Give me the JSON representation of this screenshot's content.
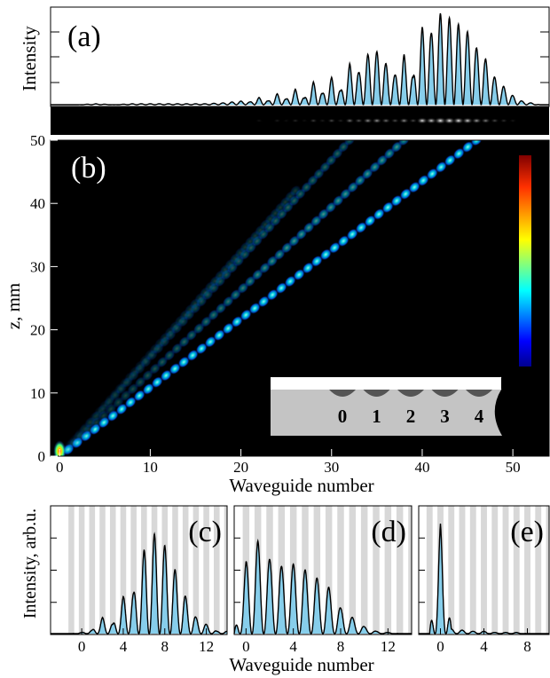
{
  "chart_data": [
    {
      "id": "a",
      "type": "area",
      "label": "(a)",
      "ylabel": "Intensity",
      "xlim": [
        -1,
        54
      ],
      "x": [
        0,
        2,
        4,
        6,
        8,
        10,
        12,
        14,
        16,
        18,
        20,
        21,
        22,
        23,
        24,
        25,
        26,
        27,
        28,
        29,
        30,
        31,
        32,
        33,
        34,
        35,
        36,
        37,
        38,
        39,
        40,
        41,
        42,
        43,
        44,
        45,
        46,
        47,
        48,
        49,
        50,
        51,
        52,
        53
      ],
      "values": [
        0.0,
        0.0,
        0.01,
        0.0,
        0.01,
        0.01,
        0.01,
        0.01,
        0.01,
        0.02,
        0.04,
        0.03,
        0.08,
        0.04,
        0.12,
        0.06,
        0.17,
        0.07,
        0.25,
        0.12,
        0.3,
        0.15,
        0.45,
        0.35,
        0.55,
        0.58,
        0.45,
        0.32,
        0.55,
        0.3,
        0.85,
        0.78,
        1.0,
        0.95,
        0.88,
        0.8,
        0.62,
        0.5,
        0.3,
        0.2,
        0.1,
        0.04,
        0.02,
        0.0
      ]
    },
    {
      "id": "b",
      "type": "heatmap",
      "label": "(b)",
      "xlabel": "Waveguide number",
      "ylabel": "z, mm",
      "xlim": [
        -1,
        54
      ],
      "ylim": [
        0,
        50
      ],
      "xticks": [
        0,
        10,
        20,
        30,
        40,
        50
      ],
      "yticks": [
        0,
        10,
        20,
        30,
        40,
        50
      ],
      "beams": [
        {
          "x0": 0,
          "x1": 46,
          "z0": 0,
          "z1": 50,
          "strength": 1.0
        },
        {
          "x0": 0,
          "x1": 38,
          "z0": 0,
          "z1": 50,
          "strength": 0.55
        },
        {
          "x0": 0,
          "x1": 32,
          "z0": 0,
          "z1": 50,
          "strength": 0.35
        },
        {
          "x0": 0,
          "x1": 26,
          "z0": 0,
          "z1": 42,
          "strength": 0.2
        }
      ],
      "inset_labels": [
        "0",
        "1",
        "2",
        "3",
        "4"
      ]
    },
    {
      "id": "c",
      "type": "area",
      "label": "(c)",
      "ylabel": "Intensity, arb.u.",
      "xlim": [
        -3,
        14
      ],
      "xticks": [
        0,
        4,
        8,
        12
      ],
      "x": [
        -2,
        -1,
        0,
        1,
        2,
        3,
        4,
        5,
        6,
        7,
        8,
        9,
        10,
        11,
        12,
        13
      ],
      "values": [
        0.0,
        0.0,
        0.01,
        0.03,
        0.14,
        0.08,
        0.32,
        0.35,
        0.72,
        0.86,
        0.76,
        0.55,
        0.32,
        0.14,
        0.08,
        0.02
      ]
    },
    {
      "id": "d",
      "type": "area",
      "label": "(d)",
      "xlim": [
        -1,
        14
      ],
      "xticks": [
        0,
        4,
        8,
        12
      ],
      "x": [
        -1,
        0,
        1,
        2,
        3,
        4,
        5,
        6,
        7,
        8,
        9,
        10,
        11,
        12,
        13
      ],
      "values": [
        0.0,
        0.62,
        0.8,
        0.64,
        0.58,
        0.6,
        0.55,
        0.48,
        0.4,
        0.22,
        0.14,
        0.06,
        0.02,
        0.01,
        0.0
      ]
    },
    {
      "id": "e",
      "type": "area",
      "label": "(e)",
      "xlim": [
        -2,
        10
      ],
      "xticks": [
        0,
        4,
        8
      ],
      "x": [
        -2,
        -1,
        0,
        1,
        2,
        3,
        4,
        5,
        6,
        7,
        8,
        9,
        10
      ],
      "values": [
        0.0,
        0.0,
        0.95,
        0.04,
        0.03,
        0.02,
        0.02,
        0.01,
        0.01,
        0.01,
        0.0,
        0.0,
        0.0
      ]
    }
  ],
  "bottom_xlabel": "Waveguide number"
}
